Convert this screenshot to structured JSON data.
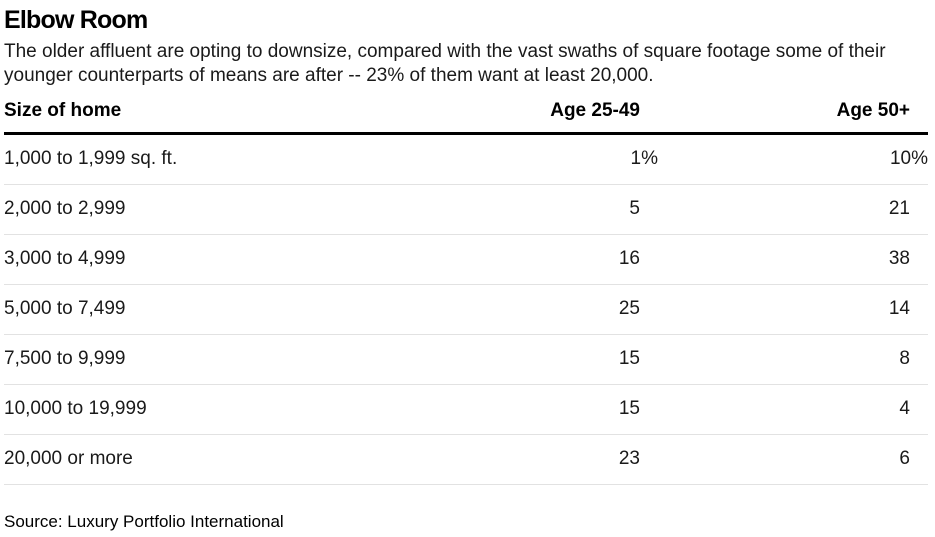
{
  "chart_data": {
    "type": "table",
    "title": "Elbow Room",
    "subtitle": "The older affluent are opting to downsize, compared with the vast swaths of square footage some of their younger counterparts of means are after -- 23% of them want at least 20,000.",
    "columns": [
      "Size of home",
      "Age 25-49",
      "Age 50+"
    ],
    "rows": [
      {
        "size": "1,000 to 1,999 sq. ft.",
        "age_25_49": "1%",
        "age_50_plus": "10%"
      },
      {
        "size": "2,000 to 2,999",
        "age_25_49": "5",
        "age_50_plus": "21"
      },
      {
        "size": "3,000 to 4,999",
        "age_25_49": "16",
        "age_50_plus": "38"
      },
      {
        "size": "5,000 to 7,499",
        "age_25_49": "25",
        "age_50_plus": "14"
      },
      {
        "size": "7,500 to 9,999",
        "age_25_49": "15",
        "age_50_plus": "8"
      },
      {
        "size": "10,000 to 19,999",
        "age_25_49": "15",
        "age_50_plus": "4"
      },
      {
        "size": "20,000 or more",
        "age_25_49": "23",
        "age_50_plus": "6"
      }
    ],
    "source": "Source: Luxury Portfolio International"
  }
}
